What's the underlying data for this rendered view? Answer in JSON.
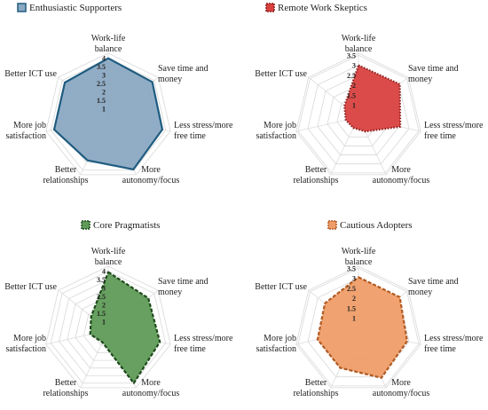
{
  "chart_data": [
    {
      "type": "radar",
      "legend": "Enthusiastic Supporters",
      "color": "#8ba9c2",
      "edge": "#1f5c80",
      "edge_style": "solid",
      "rticks": [
        "1",
        "1.5",
        "2",
        "2.5",
        "3",
        "3.5",
        "4"
      ],
      "rlim": [
        0.5,
        4.3
      ],
      "axes": [
        [
          "Work-life",
          "balance"
        ],
        [
          "Save time and",
          "money"
        ],
        [
          "Less stress/more",
          "free time"
        ],
        [
          "More",
          "autonomy/focus"
        ],
        [
          "Better",
          "relationships"
        ],
        [
          "More job",
          "satisfaction"
        ],
        [
          "Better ICT use"
        ]
      ],
      "values": [
        4.0,
        3.85,
        3.8,
        3.95,
        3.35,
        3.8,
        3.8
      ]
    },
    {
      "type": "radar",
      "legend": "Remote Work Skeptics",
      "color": "#d9413f",
      "edge": "#8c1f1e",
      "edge_style": "dotted",
      "rticks": [
        "1",
        "1.5",
        "2",
        "2.5",
        "3",
        "3.5"
      ],
      "rlim": [
        0.4,
        3.6
      ],
      "axes": [
        [
          "Work-life",
          "balance"
        ],
        [
          "Save time and",
          "money"
        ],
        [
          "Less stress/more",
          "free time"
        ],
        [
          "More",
          "autonomy/focus"
        ],
        [
          "Better",
          "relationships"
        ],
        [
          "More job",
          "satisfaction"
        ],
        [
          "Better ICT use"
        ]
      ],
      "values": [
        3.0,
        3.05,
        2.55,
        1.2,
        1.0,
        1.05,
        1.3
      ]
    },
    {
      "type": "radar",
      "legend": "Core Pragmatists",
      "color": "#5f9b57",
      "edge": "#1e4a1b",
      "edge_style": "dashed",
      "rticks": [
        "1",
        "1.5",
        "2",
        "2.5",
        "3",
        "3.5",
        "4"
      ],
      "rlim": [
        0.5,
        4.3
      ],
      "axes": [
        [
          "Work-life",
          "balance"
        ],
        [
          "Save time and",
          "money"
        ],
        [
          "Less stress/more",
          "free time"
        ],
        [
          "More",
          "autonomy/focus"
        ],
        [
          "Better",
          "relationships"
        ],
        [
          "More job",
          "satisfaction"
        ],
        [
          "Better ICT use"
        ]
      ],
      "values": [
        3.95,
        3.55,
        3.65,
        4.0,
        1.3,
        1.6,
        1.8
      ]
    },
    {
      "type": "radar",
      "legend": "Cautious Adopters",
      "color": "#ef9d68",
      "edge": "#b15a22",
      "edge_style": "dashed",
      "rticks": [
        "1",
        "1.5",
        "2",
        "2.5",
        "3",
        "3.5"
      ],
      "rlim": [
        0.4,
        3.6
      ],
      "axes": [
        [
          "Work-life",
          "balance"
        ],
        [
          "Save time and",
          "money"
        ],
        [
          "Less stress/more",
          "free time"
        ],
        [
          "More",
          "autonomy/focus"
        ],
        [
          "Better",
          "relationships"
        ],
        [
          "More job",
          "satisfaction"
        ],
        [
          "Better ICT use"
        ]
      ],
      "values": [
        3.05,
        3.05,
        2.9,
        3.05,
        2.5,
        2.5,
        2.55
      ]
    }
  ]
}
